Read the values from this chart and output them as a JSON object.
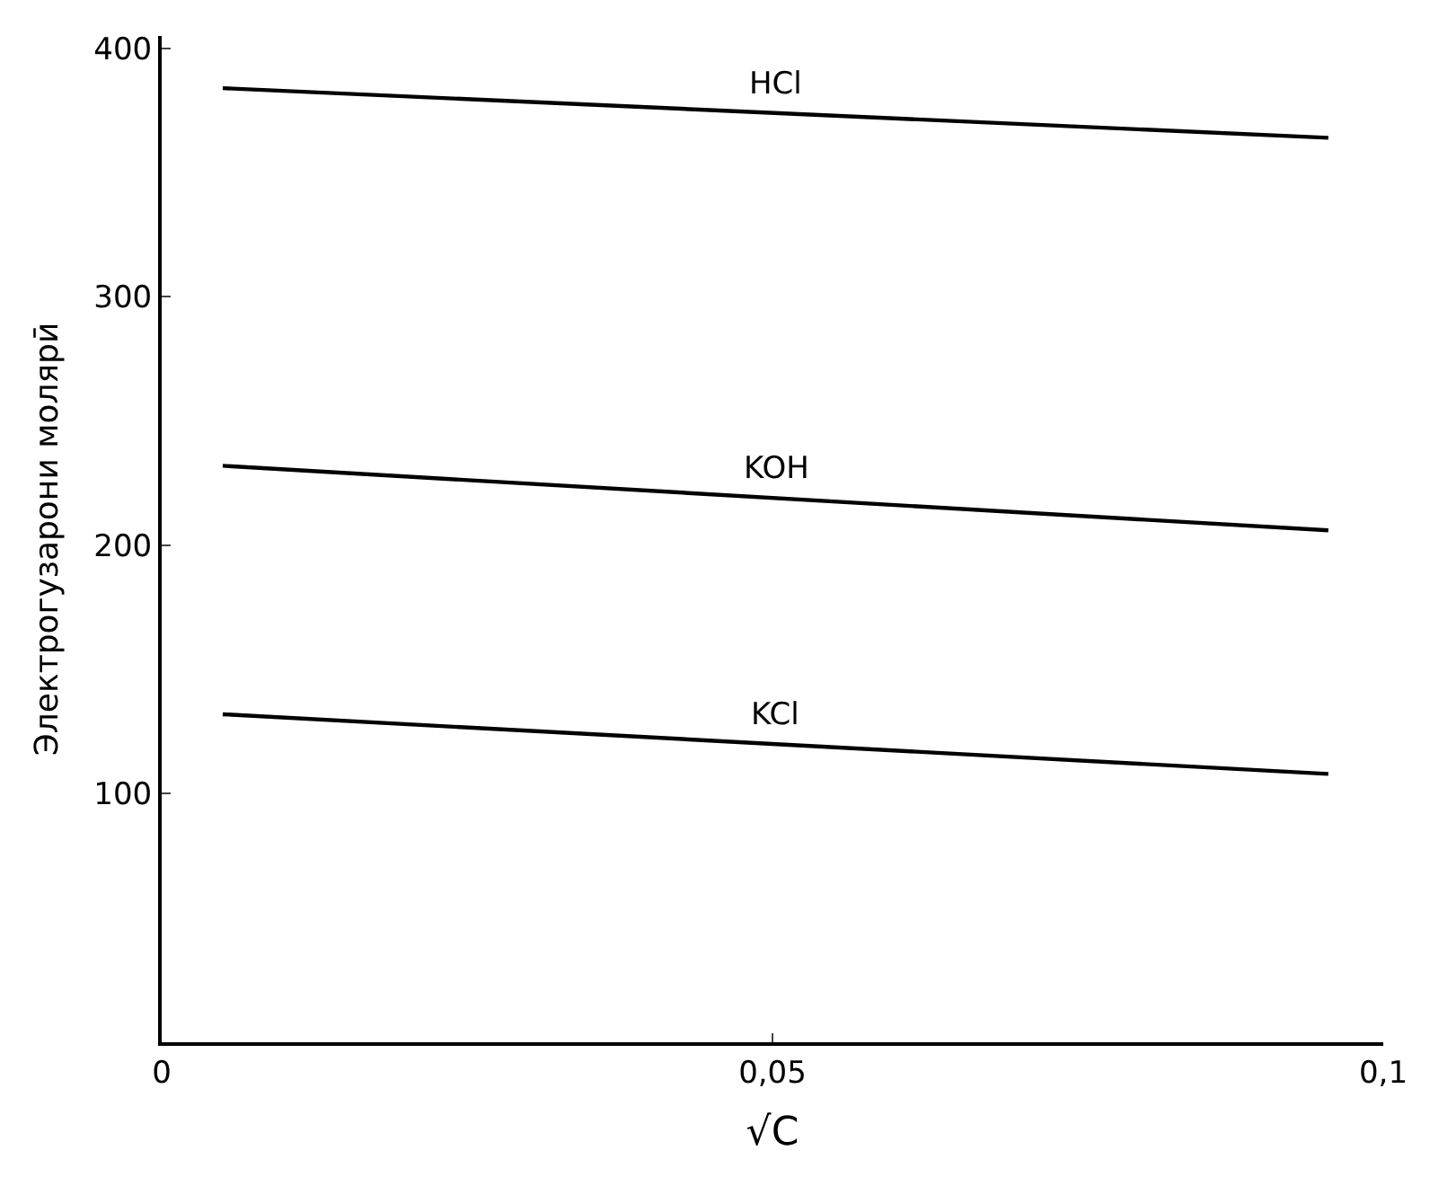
{
  "chart_data": {
    "type": "line",
    "xlabel": "√C",
    "ylabel": "Электрогузарони молярӣ",
    "x": [
      0.005,
      0.0955
    ],
    "xlim": [
      0,
      0.1
    ],
    "ylim": [
      0,
      405
    ],
    "xticks": [
      0,
      {
        "value": 0.05,
        "label": "0,05"
      },
      {
        "value": 0.1,
        "label": "0,1"
      }
    ],
    "yticks": [
      100,
      200,
      300,
      400
    ],
    "legend": false,
    "marker": "none",
    "line_style": "solid",
    "series": [
      {
        "name": "HCl",
        "color": "#000000",
        "values": [
          384,
          364
        ]
      },
      {
        "name": "KOH",
        "color": "#000000",
        "values": [
          232,
          206
        ]
      },
      {
        "name": "KCl",
        "color": "#000000",
        "values": [
          132,
          108
        ]
      }
    ]
  }
}
